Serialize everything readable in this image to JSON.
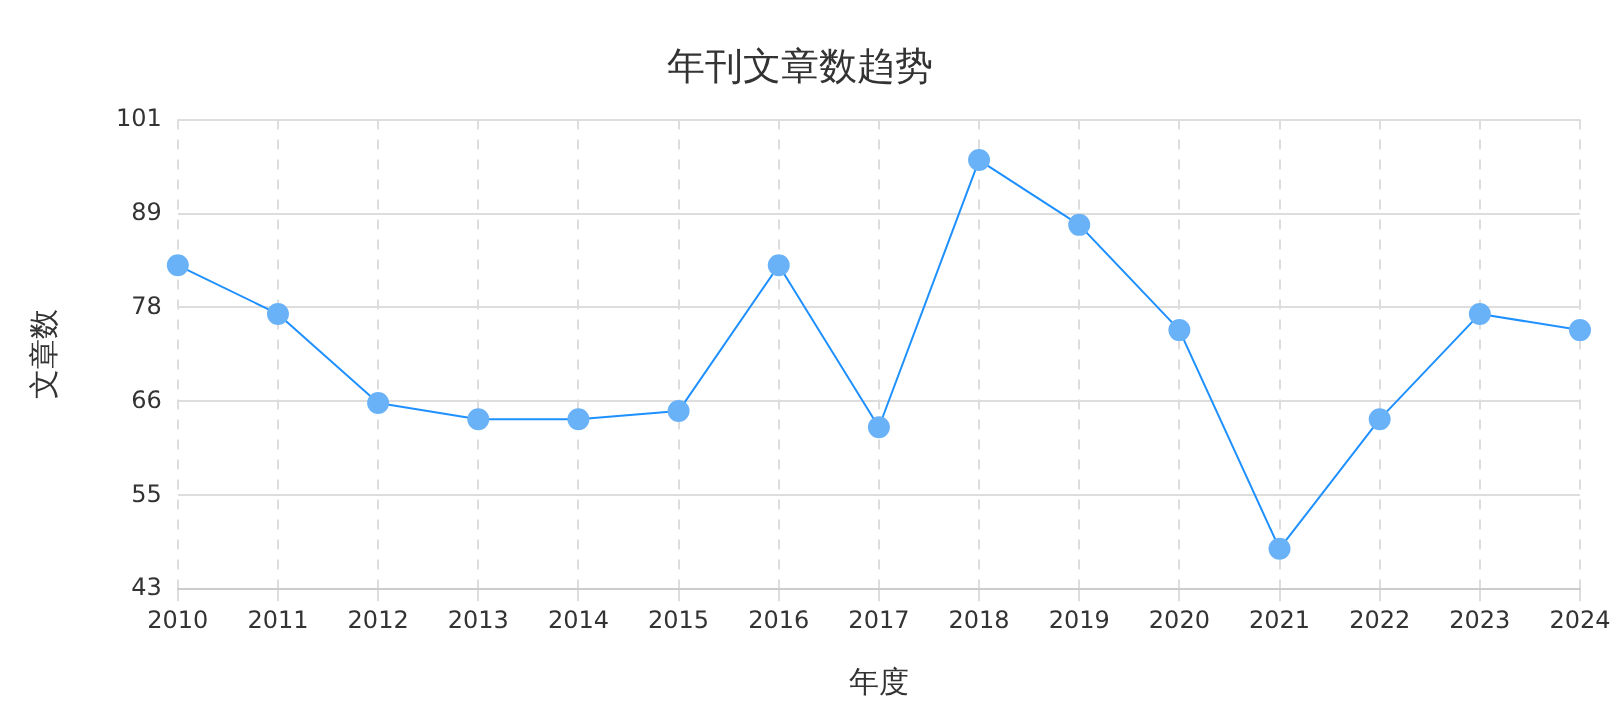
{
  "chart_data": {
    "type": "line",
    "title": "年刊文章数趋势",
    "xlabel": "年度",
    "ylabel": "文章数",
    "categories": [
      "2010",
      "2011",
      "2012",
      "2013",
      "2014",
      "2015",
      "2016",
      "2017",
      "2018",
      "2019",
      "2020",
      "2021",
      "2022",
      "2023",
      "2024"
    ],
    "series": [
      {
        "color": "#1e90ff",
        "values": [
          83,
          77,
          66,
          64,
          64,
          65,
          83,
          63,
          96,
          88,
          75,
          48,
          64,
          77,
          75
        ]
      }
    ],
    "ylim": [
      43,
      101
    ],
    "yticks": [
      43,
      {
        "value": 54.6,
        "label": "55"
      },
      {
        "value": 66.2,
        "label": "66"
      },
      {
        "value": 77.8,
        "label": "78"
      },
      {
        "value": 89.4,
        "label": "89"
      },
      101
    ],
    "grid": true,
    "marker": "circle",
    "line_style": "solid",
    "legend": false
  }
}
